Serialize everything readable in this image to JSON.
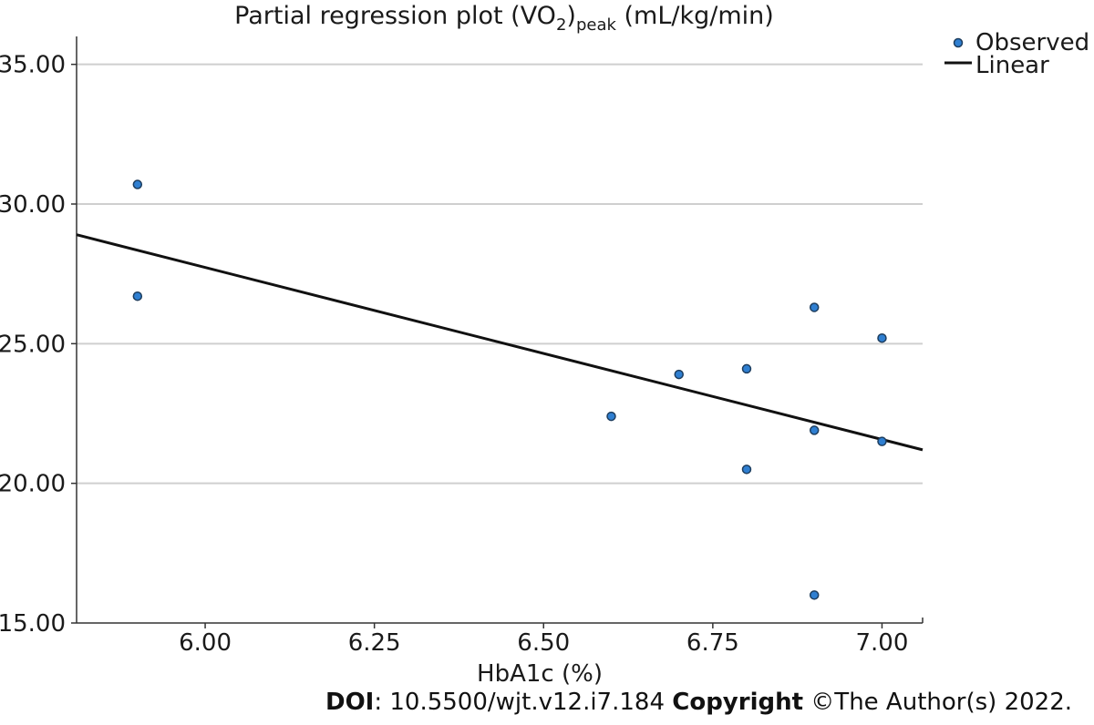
{
  "chart_data": {
    "type": "scatter",
    "title": {
      "prefix": "Partial regression plot (VO",
      "sub": "2",
      "sub2": "peak",
      "suffix": " (mL/kg/min)"
    },
    "xlabel": "HbA1c (%)",
    "ylabel": "",
    "xlim": [
      5.81,
      7.06
    ],
    "ylim": [
      15.0,
      36.0
    ],
    "x_ticks": [
      6.0,
      6.25,
      6.5,
      6.75,
      7.0
    ],
    "x_tick_labels": [
      "6.00",
      "6.25",
      "6.50",
      "6.75",
      "7.00"
    ],
    "y_ticks": [
      15.0,
      20.0,
      25.0,
      30.0,
      35.0
    ],
    "y_tick_labels": [
      "15.00",
      "20.00",
      "25.00",
      "30.00",
      "35.00"
    ],
    "grid": "horizontal",
    "legend_position": "top-right",
    "series": [
      {
        "name": "Observed",
        "kind": "points",
        "color": "#2f7fd1",
        "points": [
          {
            "x": 5.9,
            "y": 30.7
          },
          {
            "x": 5.9,
            "y": 26.7
          },
          {
            "x": 6.6,
            "y": 22.4
          },
          {
            "x": 6.7,
            "y": 23.9
          },
          {
            "x": 6.8,
            "y": 24.1
          },
          {
            "x": 6.8,
            "y": 20.5
          },
          {
            "x": 6.9,
            "y": 26.3
          },
          {
            "x": 6.9,
            "y": 21.9
          },
          {
            "x": 6.9,
            "y": 16.0
          },
          {
            "x": 7.0,
            "y": 25.2
          },
          {
            "x": 7.0,
            "y": 21.5
          }
        ]
      },
      {
        "name": "Linear",
        "kind": "line",
        "color": "#111111",
        "points": [
          {
            "x": 5.81,
            "y": 28.9
          },
          {
            "x": 7.06,
            "y": 21.2
          }
        ]
      }
    ]
  },
  "caption": {
    "doi_label": "DOI",
    "doi_text": ": 10.5500/wjt.v12.i7.184 ",
    "copyright_label": "Copyright",
    "copyright_text": " ©The Author(s) 2022."
  }
}
